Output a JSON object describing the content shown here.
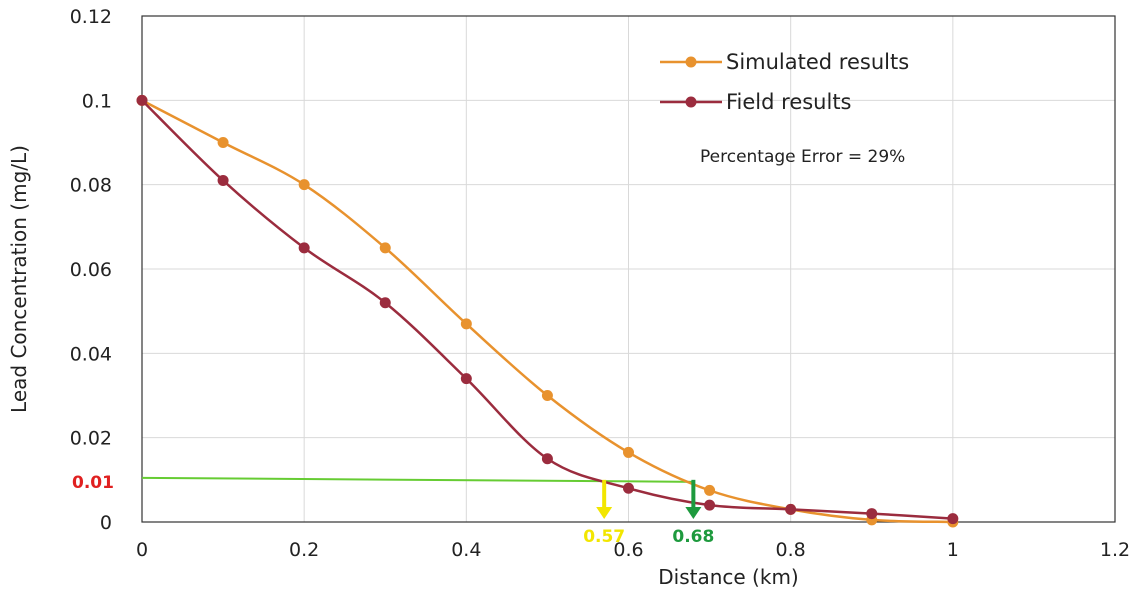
{
  "chart_data": {
    "type": "line",
    "title": "",
    "xlabel": "Distance (km)",
    "ylabel": "Lead Concentration (mg/L)",
    "xlim": [
      0,
      1.2
    ],
    "ylim": [
      0,
      0.12
    ],
    "x_ticks": [
      "0",
      "0.2",
      "0.4",
      "0.6",
      "0.8",
      "1",
      "1.2"
    ],
    "y_ticks": [
      "0",
      "0.02",
      "0.04",
      "0.06",
      "0.08",
      "0.1",
      "0.12"
    ],
    "grid": true,
    "legend_position": "top-right",
    "series": [
      {
        "name": "Simulated results",
        "color": "#E8922E",
        "x": [
          0,
          0.1,
          0.2,
          0.3,
          0.4,
          0.5,
          0.6,
          0.7,
          0.8,
          0.9,
          1.0
        ],
        "y": [
          0.1,
          0.09,
          0.08,
          0.065,
          0.047,
          0.03,
          0.0165,
          0.0075,
          0.003,
          0.0005,
          0.0
        ]
      },
      {
        "name": "Field results",
        "color": "#9B2C3E",
        "x": [
          0,
          0.1,
          0.2,
          0.3,
          0.4,
          0.5,
          0.6,
          0.7,
          0.8,
          0.9,
          1.0
        ],
        "y": [
          0.1,
          0.081,
          0.065,
          0.052,
          0.034,
          0.015,
          0.008,
          0.004,
          0.003,
          0.002,
          0.0008
        ]
      }
    ],
    "annotations": {
      "percentage_error": "Percentage Error  = 29%",
      "threshold": {
        "value": 0.01,
        "label": "0.01",
        "color": "#E02020",
        "line_color": "#66CC33",
        "x_end": 0.68
      },
      "markers": [
        {
          "x": 0.57,
          "label": "0.57",
          "color": "#F2E600"
        },
        {
          "x": 0.68,
          "label": "0.68",
          "color": "#1E9A3E"
        }
      ]
    }
  }
}
